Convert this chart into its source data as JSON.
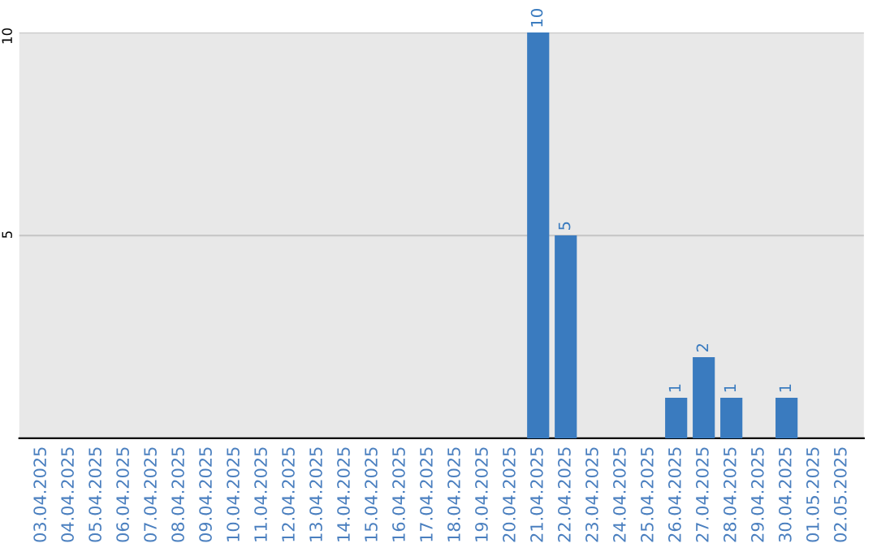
{
  "chart_data": {
    "type": "bar",
    "categories": [
      "03.04.2025",
      "04.04.2025",
      "05.04.2025",
      "06.04.2025",
      "07.04.2025",
      "08.04.2025",
      "09.04.2025",
      "10.04.2025",
      "11.04.2025",
      "12.04.2025",
      "13.04.2025",
      "14.04.2025",
      "15.04.2025",
      "16.04.2025",
      "17.04.2025",
      "18.04.2025",
      "19.04.2025",
      "20.04.2025",
      "21.04.2025",
      "22.04.2025",
      "23.04.2025",
      "24.04.2025",
      "25.04.2025",
      "26.04.2025",
      "27.04.2025",
      "28.04.2025",
      "29.04.2025",
      "30.04.2025",
      "01.05.2025",
      "02.05.2025"
    ],
    "values": [
      0,
      0,
      0,
      0,
      0,
      0,
      0,
      0,
      0,
      0,
      0,
      0,
      0,
      0,
      0,
      0,
      0,
      0,
      10,
      5,
      0,
      0,
      0,
      1,
      2,
      1,
      0,
      1,
      0,
      0
    ],
    "value_labels": [
      null,
      null,
      null,
      null,
      null,
      null,
      null,
      null,
      null,
      null,
      null,
      null,
      null,
      null,
      null,
      null,
      null,
      null,
      "10",
      "5",
      null,
      null,
      null,
      "1",
      "2",
      "1",
      null,
      "1",
      null,
      null
    ],
    "color": "#3a7bbf",
    "ylim": [
      0,
      10
    ],
    "yticks": [
      5,
      10
    ],
    "grid": "y"
  }
}
